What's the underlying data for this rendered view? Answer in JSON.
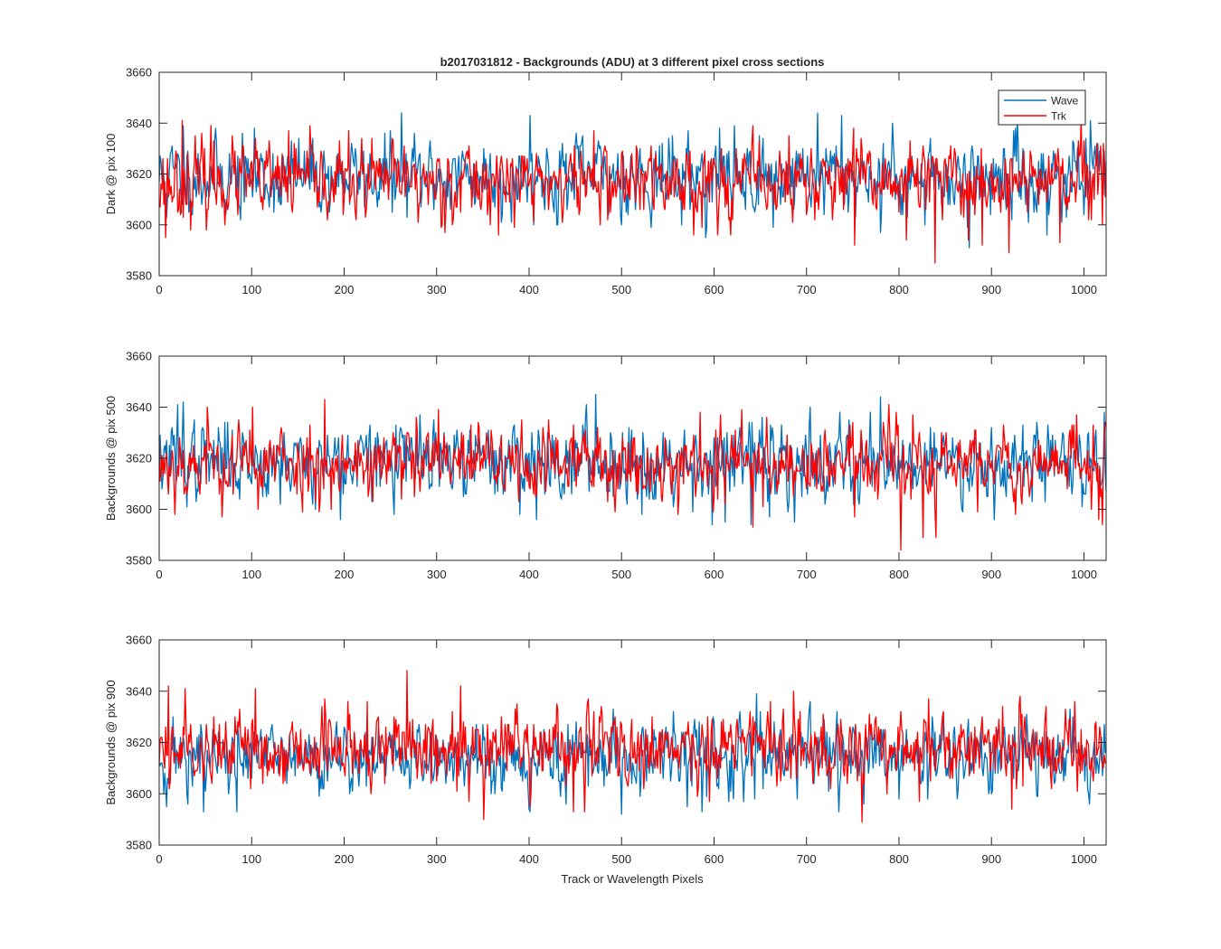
{
  "figure": {
    "title": "b2017031812 - Backgrounds (ADU) at 3 different pixel cross sections",
    "xlabel": "Track or Wavelength Pixels"
  },
  "legend": {
    "entries": [
      {
        "name": "Wave",
        "color": "#0072BD"
      },
      {
        "name": "Trk",
        "color": "#FF0000"
      }
    ],
    "placement": "top-right"
  },
  "chart_data": [
    {
      "type": "line",
      "ylabel": "Dark @ pix 100",
      "xlim": [
        0,
        1024
      ],
      "ylim": [
        3580,
        3660
      ],
      "xticks": [
        0,
        100,
        200,
        300,
        400,
        500,
        600,
        700,
        800,
        900,
        1000
      ],
      "yticks": [
        3580,
        3600,
        3620,
        3640,
        3660
      ],
      "grid": false,
      "x_step": 1,
      "series": [
        {
          "name": "Wave",
          "color": "#0072BD",
          "mean": 3619,
          "spread": 7.0,
          "seed": 11,
          "peaks": [
            [
              26,
              3639
            ],
            [
              262,
              3644
            ],
            [
              401,
              3643
            ],
            [
              712,
              3644
            ],
            [
              738,
              3643
            ],
            [
              606,
              3638
            ],
            [
              8,
              3603
            ],
            [
              88,
              3602
            ],
            [
              370,
              3601
            ],
            [
              592,
              3599
            ],
            [
              664,
              3599
            ],
            [
              780,
              3597
            ],
            [
              828,
              3600
            ],
            [
              876,
              3591
            ],
            [
              940,
              3601
            ],
            [
              960,
              3596
            ]
          ]
        },
        {
          "name": "Trk",
          "color": "#FF0000",
          "mean": 3617,
          "spread": 7.0,
          "seed": 23,
          "peaks": [
            [
              7,
              3595
            ],
            [
              25,
              3641
            ],
            [
              56,
              3639
            ],
            [
              140,
              3637
            ],
            [
              470,
              3637
            ],
            [
              752,
              3592
            ],
            [
              808,
              3594
            ],
            [
              839,
              3585
            ],
            [
              875,
              3594
            ],
            [
              890,
              3592
            ],
            [
              919,
              3589
            ],
            [
              974,
              3593
            ],
            [
              1020,
              3600
            ]
          ]
        }
      ]
    },
    {
      "type": "line",
      "ylabel": "Backgrounds @ pix 500",
      "xlim": [
        0,
        1024
      ],
      "ylim": [
        3580,
        3660
      ],
      "xticks": [
        0,
        100,
        200,
        300,
        400,
        500,
        600,
        700,
        800,
        900,
        1000
      ],
      "yticks": [
        3580,
        3600,
        3620,
        3640,
        3660
      ],
      "grid": false,
      "x_step": 1,
      "series": [
        {
          "name": "Wave",
          "color": "#0072BD",
          "mean": 3619,
          "spread": 7.0,
          "seed": 37,
          "peaks": [
            [
              20,
              3641
            ],
            [
              26,
              3642
            ],
            [
              472,
              3645
            ],
            [
              780,
              3644
            ],
            [
              1022,
              3638
            ],
            [
              196,
              3596
            ],
            [
              408,
              3596
            ],
            [
              522,
              3598
            ],
            [
              598,
              3594
            ],
            [
              612,
              3595
            ],
            [
              640,
              3594
            ],
            [
              660,
              3597
            ]
          ]
        },
        {
          "name": "Trk",
          "color": "#FF0000",
          "mean": 3618,
          "spread": 7.0,
          "seed": 53,
          "peaks": [
            [
              52,
              3640
            ],
            [
              101,
              3640
            ],
            [
              179,
              3643
            ],
            [
              302,
              3639
            ],
            [
              630,
              3639
            ],
            [
              642,
              3593
            ],
            [
              752,
              3597
            ],
            [
              802,
              3584
            ],
            [
              826,
              3589
            ],
            [
              840,
              3589
            ],
            [
              1016,
              3596
            ]
          ]
        }
      ]
    },
    {
      "type": "line",
      "ylabel": "Backgrounds @ pix 900",
      "xlim": [
        0,
        1024
      ],
      "ylim": [
        3580,
        3660
      ],
      "xticks": [
        0,
        100,
        200,
        300,
        400,
        500,
        600,
        700,
        800,
        900,
        1000
      ],
      "yticks": [
        3580,
        3600,
        3620,
        3640,
        3660
      ],
      "grid": false,
      "x_step": 1,
      "series": [
        {
          "name": "Wave",
          "color": "#0072BD",
          "mean": 3614,
          "spread": 6.5,
          "seed": 71,
          "peaks": [
            [
              8,
              3595
            ],
            [
              48,
              3593
            ],
            [
              84,
              3593
            ],
            [
              440,
              3596
            ],
            [
              500,
              3592
            ],
            [
              616,
              3597
            ],
            [
              646,
              3639
            ],
            [
              690,
              3598
            ],
            [
              900,
              3600
            ],
            [
              1022,
              3627
            ]
          ]
        },
        {
          "name": "Trk",
          "color": "#FF0000",
          "mean": 3618,
          "spread": 7.0,
          "seed": 89,
          "peaks": [
            [
              10,
              3642
            ],
            [
              28,
              3641
            ],
            [
              104,
              3641
            ],
            [
              268,
              3648
            ],
            [
              326,
              3642
            ],
            [
              448,
              3593
            ],
            [
              460,
              3593
            ],
            [
              582,
              3599
            ],
            [
              760,
              3589
            ],
            [
              822,
              3597
            ],
            [
              922,
              3594
            ]
          ]
        }
      ]
    }
  ]
}
